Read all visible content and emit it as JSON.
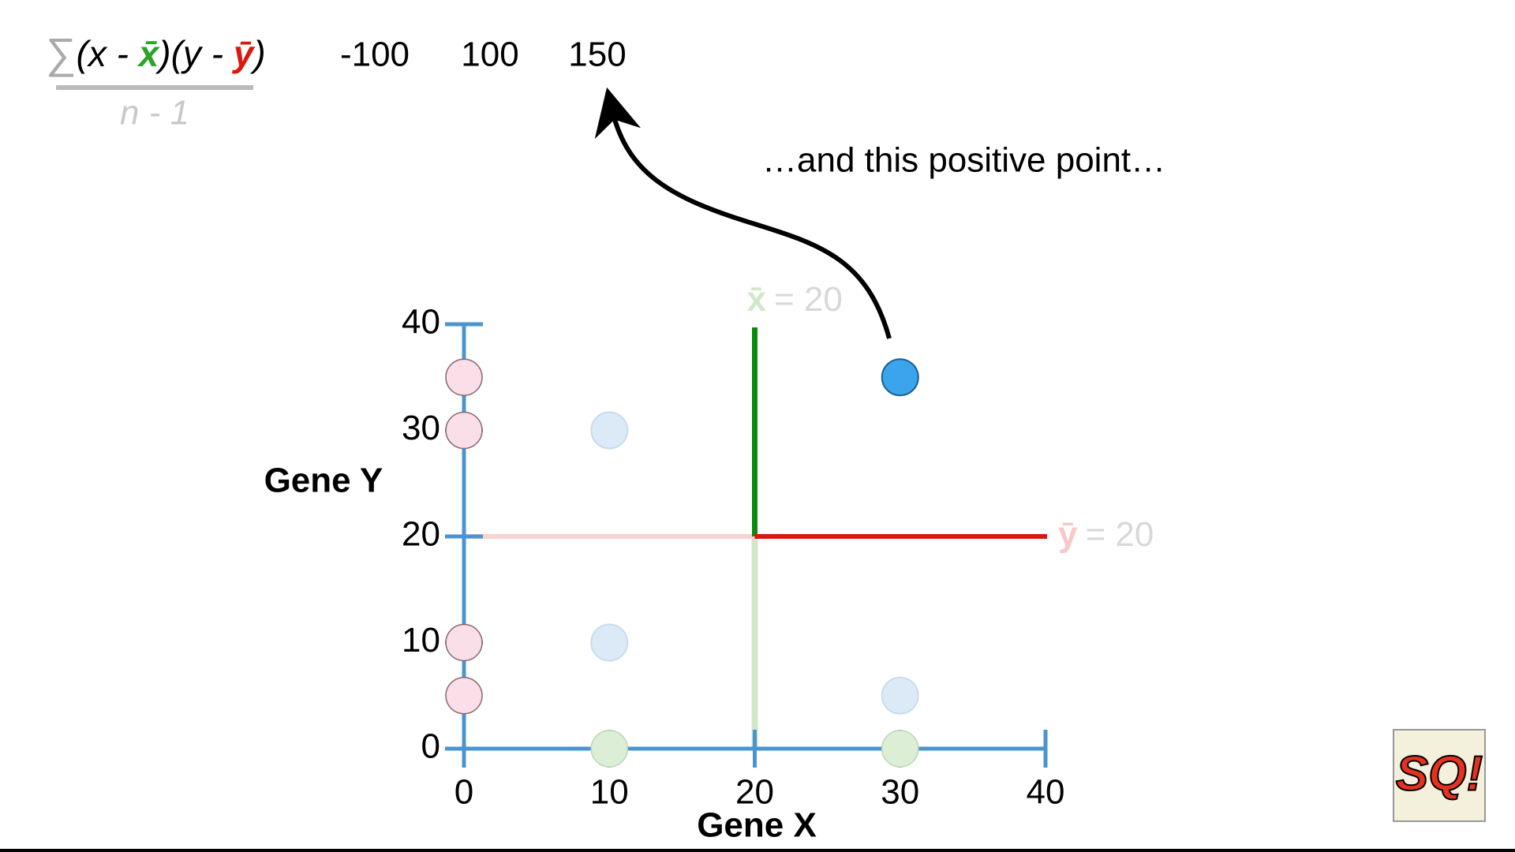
{
  "chart_data": {
    "type": "scatter",
    "formula": [
      "∑",
      "(x - ",
      "x̄",
      ")(y - ",
      "ȳ",
      ")"
    ],
    "denominator": "n - 1",
    "products": [
      "-100",
      "100",
      "150"
    ],
    "annotation": "…and this positive point…",
    "x_label": "Gene X",
    "y_label": "Gene Y",
    "x": [
      10,
      10,
      30,
      30
    ],
    "values": [
      30,
      10,
      5,
      35
    ],
    "color": "#dbeaf6",
    "highlight_color": "#3aa5ec",
    "highlight": [
      3
    ],
    "y_projection_color": "#fadfe8",
    "x_projection_color": "#dcefd6",
    "x_mean": {
      "value": 20,
      "symbol": "x̄",
      "label": "= 20",
      "color": "#0b8a0b"
    },
    "y_mean": {
      "value": 20,
      "symbol": "ȳ",
      "label": "= 20",
      "color": "#d9180f"
    },
    "xlim": [
      0,
      40
    ],
    "ylim": [
      0,
      40
    ],
    "xticks": [
      0,
      10,
      20,
      30,
      40
    ],
    "yticks": [
      0,
      10,
      20,
      30,
      40
    ],
    "logo": "SQ!"
  }
}
